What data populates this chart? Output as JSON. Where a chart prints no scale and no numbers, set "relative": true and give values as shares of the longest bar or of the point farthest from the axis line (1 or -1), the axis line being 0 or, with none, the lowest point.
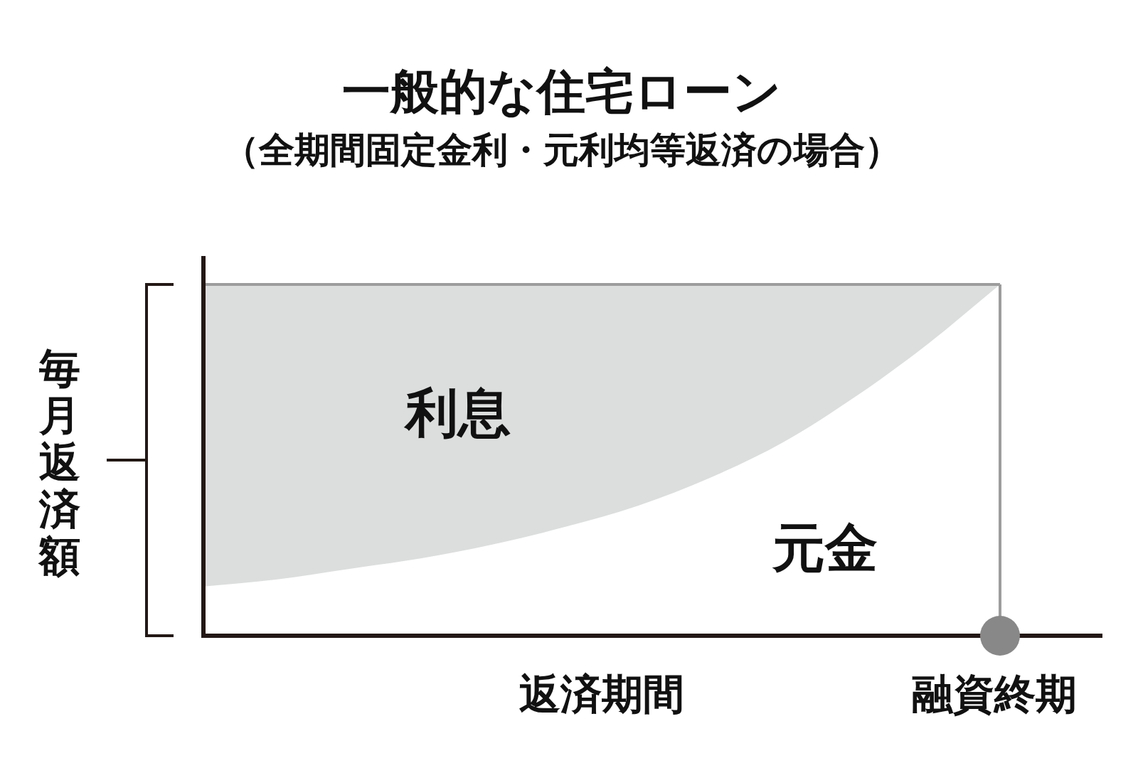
{
  "chart_data": {
    "type": "area",
    "title": "一般的な住宅ローン",
    "subtitle": "（全期間固定金利・元利均等返済の場合）",
    "xlabel": "返済期間",
    "ylabel": "毎月返済額",
    "categories": [
      null,
      null,
      null,
      null,
      null,
      null,
      null,
      null,
      null,
      null,
      null,
      null
    ],
    "stacked": true,
    "relative": true,
    "series": [
      {
        "name": "元金",
        "color": "#ffffff",
        "values": [
          0.14,
          0.16,
          0.19,
          0.22,
          0.26,
          0.31,
          0.37,
          0.45,
          0.55,
          0.68,
          0.83,
          1.0
        ]
      },
      {
        "name": "利息",
        "color": "#dcdddd",
        "values": [
          0.86,
          0.84,
          0.81,
          0.78,
          0.74,
          0.69,
          0.63,
          0.55,
          0.45,
          0.32,
          0.17,
          0
        ]
      }
    ],
    "annotations": [
      "融資終期"
    ]
  }
}
